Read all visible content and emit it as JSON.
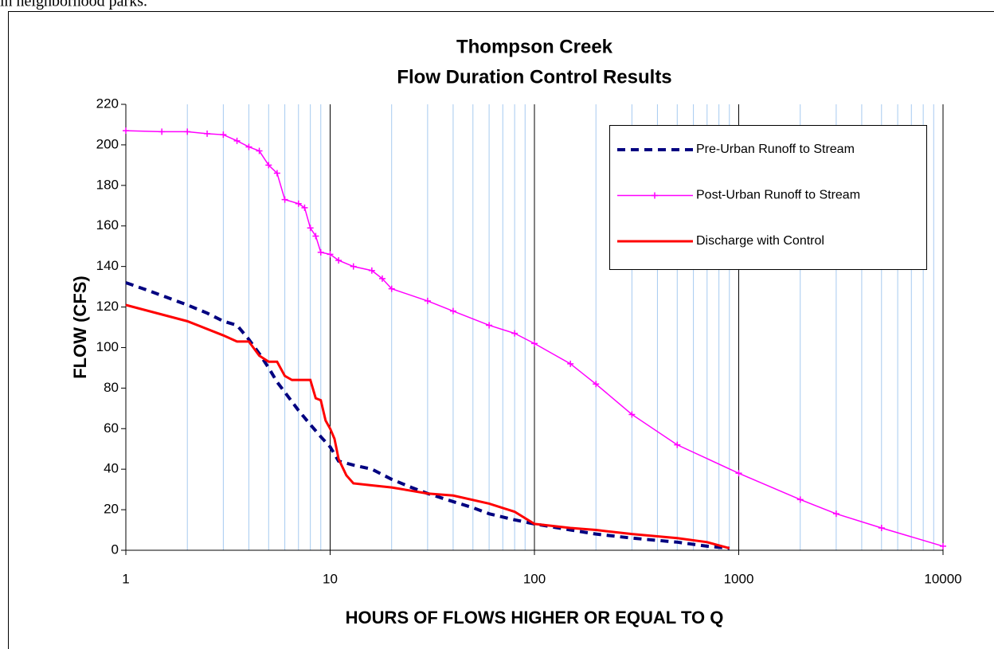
{
  "page_text": "in neighborhood parks.",
  "chart_data": {
    "type": "line",
    "title": [
      "Thompson Creek",
      "Flow Duration Control Results"
    ],
    "x_label": "HOURS OF FLOWS HIGHER OR EQUAL TO Q",
    "y_label": "FLOW (CFS)",
    "xlog": true,
    "xlim": [
      1,
      10000
    ],
    "xticks": [
      1,
      10,
      100,
      1000,
      10000
    ],
    "ylim": [
      0,
      220
    ],
    "yticks": [
      0,
      20,
      40,
      60,
      80,
      100,
      120,
      140,
      160,
      180,
      200,
      220
    ],
    "x_grid": true,
    "legend": "upper right",
    "series": [
      {
        "name": "Pre-Urban Runoff to Stream",
        "color": "#000080",
        "dash": true,
        "x": [
          1,
          1.3,
          2,
          2.5,
          3,
          3.5,
          4,
          4.5,
          5,
          5.5,
          6,
          7,
          8,
          9,
          10,
          11,
          13,
          16,
          20,
          25,
          30,
          40,
          50,
          60,
          80,
          100,
          150,
          200,
          300,
          500,
          700,
          900
        ],
        "values": [
          132,
          128,
          121,
          117,
          113,
          111,
          104,
          97,
          90,
          83,
          78,
          69,
          62,
          56,
          51,
          44,
          42,
          40,
          35,
          31,
          28,
          24,
          21,
          18,
          15,
          13,
          10,
          8,
          6,
          4,
          2,
          1
        ]
      },
      {
        "name": "Post-Urban Runoff to Stream",
        "color": "#ff00ff",
        "marker": "+",
        "x": [
          1,
          1.5,
          2,
          2.5,
          3,
          3.5,
          4,
          4.5,
          5,
          5.5,
          6,
          7,
          7.5,
          8,
          8.5,
          9,
          10,
          11,
          13,
          16,
          18,
          20,
          30,
          40,
          60,
          80,
          100,
          150,
          200,
          300,
          500,
          1000,
          2000,
          3000,
          5000,
          10000
        ],
        "values": [
          207,
          206.5,
          206.5,
          205.5,
          205,
          202,
          199,
          197,
          190,
          186,
          173,
          171,
          169,
          159,
          155,
          147,
          146,
          143,
          140,
          138,
          134,
          129,
          123,
          118,
          111,
          107,
          102,
          92,
          82,
          67,
          52,
          38,
          25,
          18,
          11,
          2
        ]
      },
      {
        "name": "Discharge with Control",
        "color": "#ff0000",
        "x": [
          1,
          2,
          3,
          3.5,
          4,
          4.5,
          5,
          5.5,
          6,
          6.5,
          7,
          8,
          8.5,
          9,
          9.5,
          10,
          10.5,
          11,
          12,
          13,
          16,
          20,
          30,
          40,
          60,
          80,
          100,
          150,
          200,
          300,
          500,
          700,
          900
        ],
        "values": [
          121,
          113,
          106,
          103,
          103,
          96,
          93,
          93,
          86,
          84,
          84,
          84,
          75,
          74,
          64,
          60,
          55,
          45,
          37,
          33,
          32,
          31,
          28,
          27,
          23,
          19,
          13,
          11,
          10,
          8,
          6,
          4,
          1
        ]
      }
    ]
  }
}
